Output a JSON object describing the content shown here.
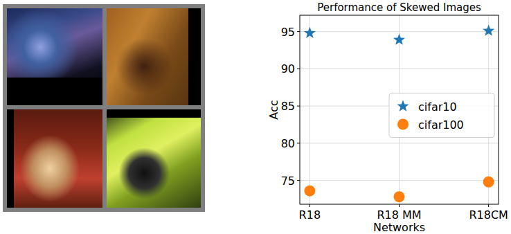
{
  "chart_data": {
    "type": "scatter",
    "title": "Performance of Skewed Images",
    "x_label": "Networks",
    "y_label": "Acc",
    "categories": [
      "R18",
      "R18 MM",
      "R18CM"
    ],
    "series": [
      {
        "name": "cifar10",
        "color": "#1f77b4",
        "marker": "star",
        "values": [
          94.8,
          93.9,
          95.1
        ]
      },
      {
        "name": "cifar100",
        "color": "#ff7f0e",
        "marker": "circle",
        "values": [
          73.6,
          72.8,
          74.8
        ]
      }
    ],
    "ylim": [
      71.8,
      97.2
    ],
    "yticks": [
      75,
      80,
      85,
      90,
      95
    ],
    "grid": true,
    "legend": "center right"
  }
}
